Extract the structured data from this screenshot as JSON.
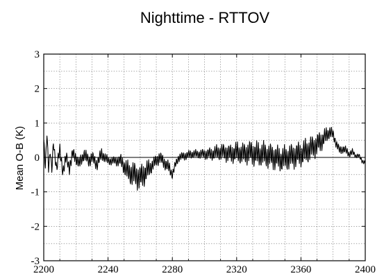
{
  "chart_data": {
    "type": "line",
    "title": "Nighttime - RTTOV",
    "xlabel": "",
    "ylabel": "Mean  O-B (K)",
    "xlim": [
      2200,
      2400
    ],
    "ylim": [
      -3,
      3
    ],
    "x_ticks": [
      2200,
      2240,
      2280,
      2320,
      2360,
      2400
    ],
    "x_tick_labels": [
      "2200",
      "2240",
      "2280",
      "2320",
      "2360",
      "2400"
    ],
    "y_ticks": [
      -3,
      -2,
      -1,
      0,
      1,
      2,
      3
    ],
    "y_tick_labels": [
      "-3",
      "-2",
      "-1",
      "0",
      "1",
      "2",
      "3"
    ],
    "grid": true,
    "zero_line": true,
    "series": [
      {
        "color": "#000000",
        "x": [
          2200,
          2201,
          2202,
          2203,
          2204,
          2205,
          2206,
          2208,
          2210,
          2212,
          2214,
          2216,
          2218,
          2220,
          2222,
          2225,
          2228,
          2230,
          2233,
          2236,
          2240,
          2244,
          2248,
          2252,
          2256,
          2260,
          2262,
          2264,
          2266,
          2268,
          2270,
          2272,
          2274,
          2276,
          2278,
          2280,
          2282,
          2284,
          2288,
          2292,
          2296,
          2300,
          2304,
          2308,
          2312,
          2316,
          2320,
          2324,
          2328,
          2332,
          2336,
          2340,
          2344,
          2348,
          2352,
          2356,
          2360,
          2364,
          2368,
          2372,
          2375,
          2378,
          2380,
          2382,
          2384,
          2386,
          2388,
          2390,
          2392,
          2394,
          2396,
          2398,
          2400
        ],
        "y": [
          0.5,
          -0.3,
          0.7,
          -0.3,
          0.2,
          -0.4,
          0.4,
          -0.3,
          0.2,
          -0.4,
          0.0,
          -0.3,
          0.1,
          0.0,
          -0.2,
          0.1,
          -0.1,
          0.0,
          -0.2,
          0.1,
          -0.1,
          -0.1,
          -0.1,
          -0.4,
          -0.5,
          -0.6,
          -0.5,
          -0.4,
          -0.3,
          -0.2,
          -0.1,
          0.0,
          -0.1,
          -0.2,
          -0.3,
          -0.5,
          -0.2,
          0.0,
          0.05,
          0.1,
          0.1,
          0.1,
          0.1,
          0.15,
          0.15,
          0.1,
          0.15,
          0.1,
          0.15,
          0.1,
          0.1,
          0.05,
          0.0,
          -0.05,
          0.0,
          0.05,
          0.1,
          0.2,
          0.3,
          0.45,
          0.6,
          0.75,
          0.65,
          0.4,
          0.2,
          0.25,
          0.2,
          0.1,
          0.15,
          0.05,
          0.05,
          -0.1,
          -0.15
        ],
        "oscillation_amplitude": [
          0.1,
          0.1,
          0.1,
          0.1,
          0.1,
          0.1,
          0.1,
          0.15,
          0.15,
          0.15,
          0.15,
          0.15,
          0.15,
          0.15,
          0.15,
          0.15,
          0.15,
          0.15,
          0.15,
          0.15,
          0.1,
          0.1,
          0.15,
          0.25,
          0.3,
          0.3,
          0.3,
          0.25,
          0.2,
          0.15,
          0.15,
          0.15,
          0.15,
          0.15,
          0.15,
          0.1,
          0.1,
          0.1,
          0.1,
          0.1,
          0.1,
          0.12,
          0.15,
          0.18,
          0.2,
          0.22,
          0.25,
          0.25,
          0.28,
          0.3,
          0.3,
          0.3,
          0.3,
          0.3,
          0.3,
          0.3,
          0.3,
          0.3,
          0.28,
          0.25,
          0.2,
          0.15,
          0.12,
          0.1,
          0.1,
          0.1,
          0.1,
          0.08,
          0.08,
          0.05,
          0.05,
          0.05,
          0.05
        ]
      }
    ]
  }
}
